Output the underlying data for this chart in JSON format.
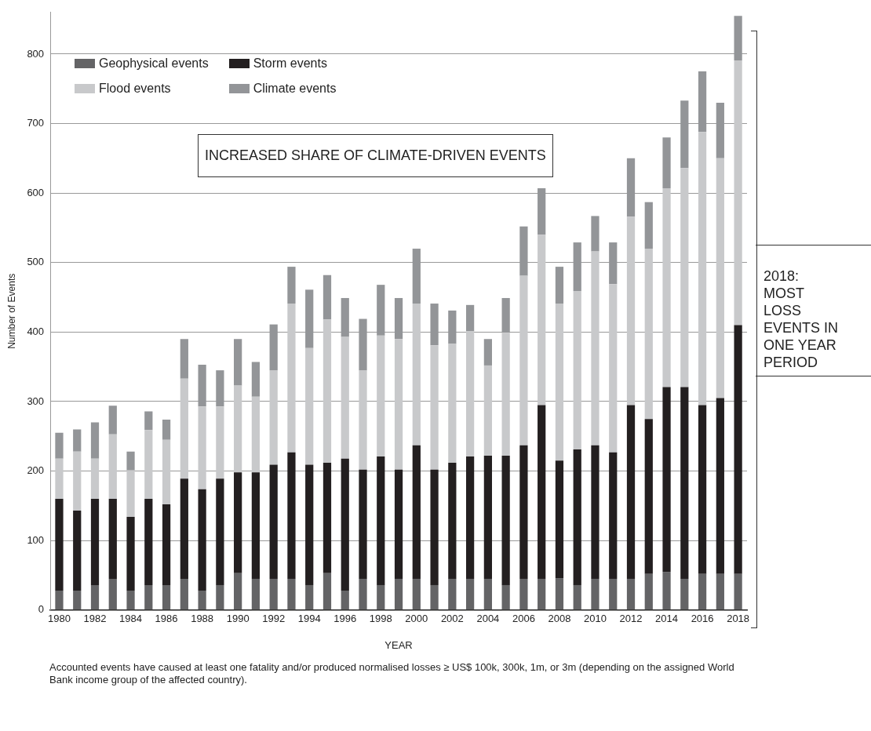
{
  "chart_data": {
    "type": "bar",
    "stacked": true,
    "xlabel": "YEAR",
    "ylabel": "Number of Events",
    "categories": [
      "1980",
      null,
      "1982",
      null,
      "1984",
      null,
      "1986",
      null,
      "1988",
      null,
      "1990",
      null,
      "1992",
      null,
      "1994",
      null,
      "1996",
      null,
      "1998",
      null,
      "2000",
      null,
      "2002",
      null,
      "2004",
      null,
      "2006",
      null,
      "2008",
      null,
      "2010",
      null,
      "2012",
      null,
      "2014",
      null,
      "2016",
      null,
      "2018"
    ],
    "series": [
      {
        "name": "Geophysical events",
        "color": "#646466",
        "values": [
          28,
          28,
          36,
          45,
          28,
          36,
          36,
          45,
          28,
          36,
          53,
          45,
          45,
          45,
          36,
          53,
          28,
          45,
          36,
          45,
          45,
          36,
          45,
          45,
          45,
          36,
          45,
          45,
          46,
          36,
          45,
          45,
          45,
          52,
          55,
          45,
          52,
          52,
          52
        ]
      },
      {
        "name": "Storm events",
        "color": "#231f20",
        "values": [
          132,
          115,
          124,
          115,
          106,
          124,
          116,
          144,
          146,
          153,
          145,
          153,
          164,
          182,
          173,
          159,
          190,
          157,
          185,
          157,
          192,
          166,
          167,
          176,
          177,
          186,
          192,
          250,
          169,
          195,
          192,
          182,
          250,
          223,
          266,
          276,
          243,
          253,
          358
        ]
      },
      {
        "name": "Flood events",
        "color": "#c8c9cb",
        "values": [
          58,
          85,
          58,
          93,
          67,
          99,
          93,
          144,
          119,
          104,
          125,
          109,
          136,
          214,
          168,
          206,
          175,
          143,
          174,
          188,
          204,
          179,
          171,
          180,
          130,
          177,
          244,
          245,
          226,
          228,
          279,
          242,
          271,
          245,
          286,
          315,
          393,
          345,
          381
        ]
      },
      {
        "name": "Climate events",
        "color": "#939598",
        "values": [
          37,
          32,
          52,
          41,
          27,
          27,
          29,
          57,
          60,
          52,
          67,
          50,
          66,
          53,
          84,
          64,
          56,
          74,
          73,
          59,
          79,
          60,
          48,
          38,
          38,
          50,
          71,
          67,
          53,
          70,
          51,
          60,
          84,
          67,
          73,
          97,
          87,
          80,
          64
        ]
      }
    ],
    "ylim": [
      0,
      860
    ],
    "yticks": [
      0,
      100,
      200,
      300,
      400,
      500,
      600,
      700,
      800
    ],
    "grid": "y",
    "legend": "top left",
    "annotations": [
      "INCREASED SHARE OF CLIMATE-DRIVEN EVENTS",
      "2018: MOST LOSS EVENTS IN ONE YEAR PERIOD",
      "Accounted events have caused at least one fatality and/or produced normalised losses ≥ US$ 100k, 300k, 1m, or 3m (depending on the assigned World Bank income group of the affected country)."
    ]
  }
}
